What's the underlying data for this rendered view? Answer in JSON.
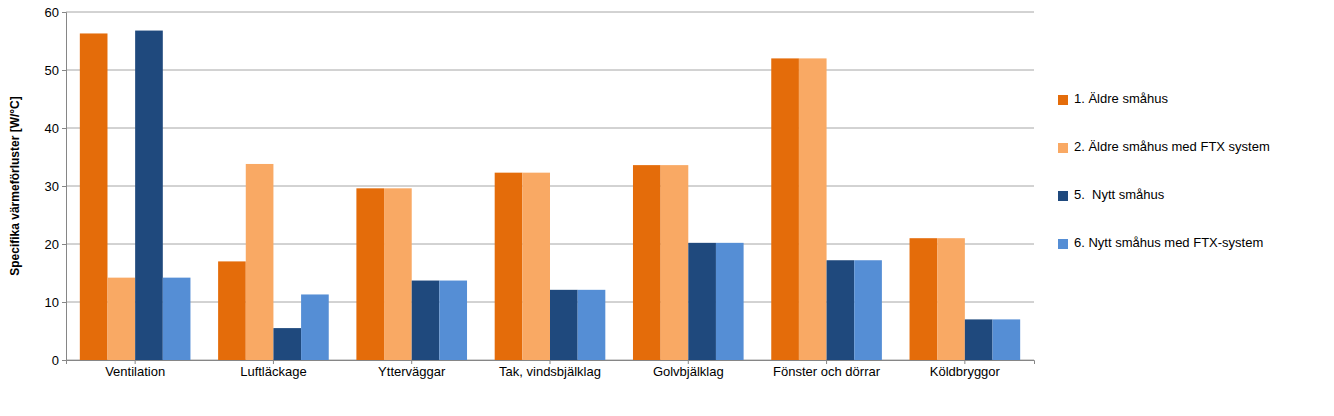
{
  "chart_data": {
    "type": "bar",
    "y_label": "Specifika värmeförluster [W/°C]",
    "categories": [
      "Ventilation",
      "Luftläckage",
      "Ytterväggar",
      "Tak, vindsbjälklag",
      "Golvbjälklag",
      "Fönster och dörrar",
      "Köldbryggor"
    ],
    "series": [
      {
        "name": "1. Äldre småhus",
        "color": "#e46c0a",
        "values": [
          56.3,
          17,
          29.6,
          32.3,
          33.6,
          52,
          21
        ]
      },
      {
        "name": "2. Äldre småhus med FTX system",
        "color": "#f9a964",
        "values": [
          14.2,
          33.8,
          29.6,
          32.3,
          33.6,
          52,
          21
        ]
      },
      {
        "name": "5.  Nytt småhus",
        "color": "#1f497d",
        "values": [
          56.8,
          5.5,
          13.7,
          12.1,
          20.2,
          17.2,
          7
        ]
      },
      {
        "name": "6. Nytt småhus med FTX-system",
        "color": "#558ed5",
        "values": [
          14.2,
          11.3,
          13.7,
          12.1,
          20.2,
          17.2,
          7
        ]
      }
    ],
    "ylim": [
      0,
      60
    ],
    "yticks": [
      0,
      10,
      20,
      30,
      40,
      50,
      60
    ],
    "grid": true,
    "legend": "right"
  }
}
